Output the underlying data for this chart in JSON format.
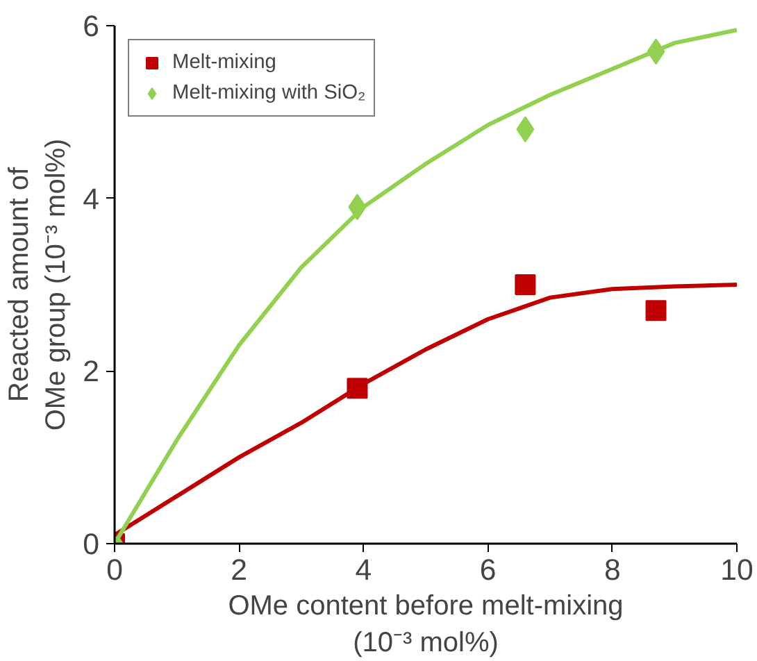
{
  "chart_data": {
    "type": "scatter",
    "xlabel": "OMe content before melt-mixing\n(10⁻³ mol%)",
    "ylabel": "Reacted amount of\nOMe group (10⁻³ mol%)",
    "xlim": [
      0,
      10
    ],
    "ylim": [
      0,
      6
    ],
    "xticks": [
      0,
      2,
      4,
      6,
      8,
      10
    ],
    "yticks": [
      0,
      2,
      4,
      6
    ],
    "grid": false,
    "legend": "top left",
    "series": [
      {
        "name": "Melt-mixing",
        "color": "#c00000",
        "marker": "square",
        "x": [
          0,
          3.9,
          6.6,
          8.7
        ],
        "values": [
          0,
          1.8,
          3.0,
          2.7
        ]
      },
      {
        "name": "Melt-mixing with SiO₂",
        "color": "#92d050",
        "marker": "diamond",
        "x": [
          0,
          3.9,
          6.6,
          8.7
        ],
        "values": [
          0,
          3.9,
          4.8,
          5.7
        ]
      },
      {
        "type": "line",
        "color": "#c00000",
        "x": [
          0,
          1,
          2,
          3,
          4,
          5,
          6,
          6.6,
          7,
          8,
          9,
          10
        ],
        "values": [
          0.1,
          0.55,
          1.0,
          1.4,
          1.85,
          2.25,
          2.6,
          2.75,
          2.85,
          2.95,
          2.98,
          3.0
        ]
      },
      {
        "type": "line",
        "color": "#92d050",
        "x": [
          0,
          1,
          2,
          3,
          4,
          5,
          6,
          7,
          8,
          9,
          10
        ],
        "values": [
          0,
          1.2,
          2.3,
          3.2,
          3.9,
          4.4,
          4.85,
          5.2,
          5.5,
          5.8,
          5.95
        ]
      }
    ]
  }
}
